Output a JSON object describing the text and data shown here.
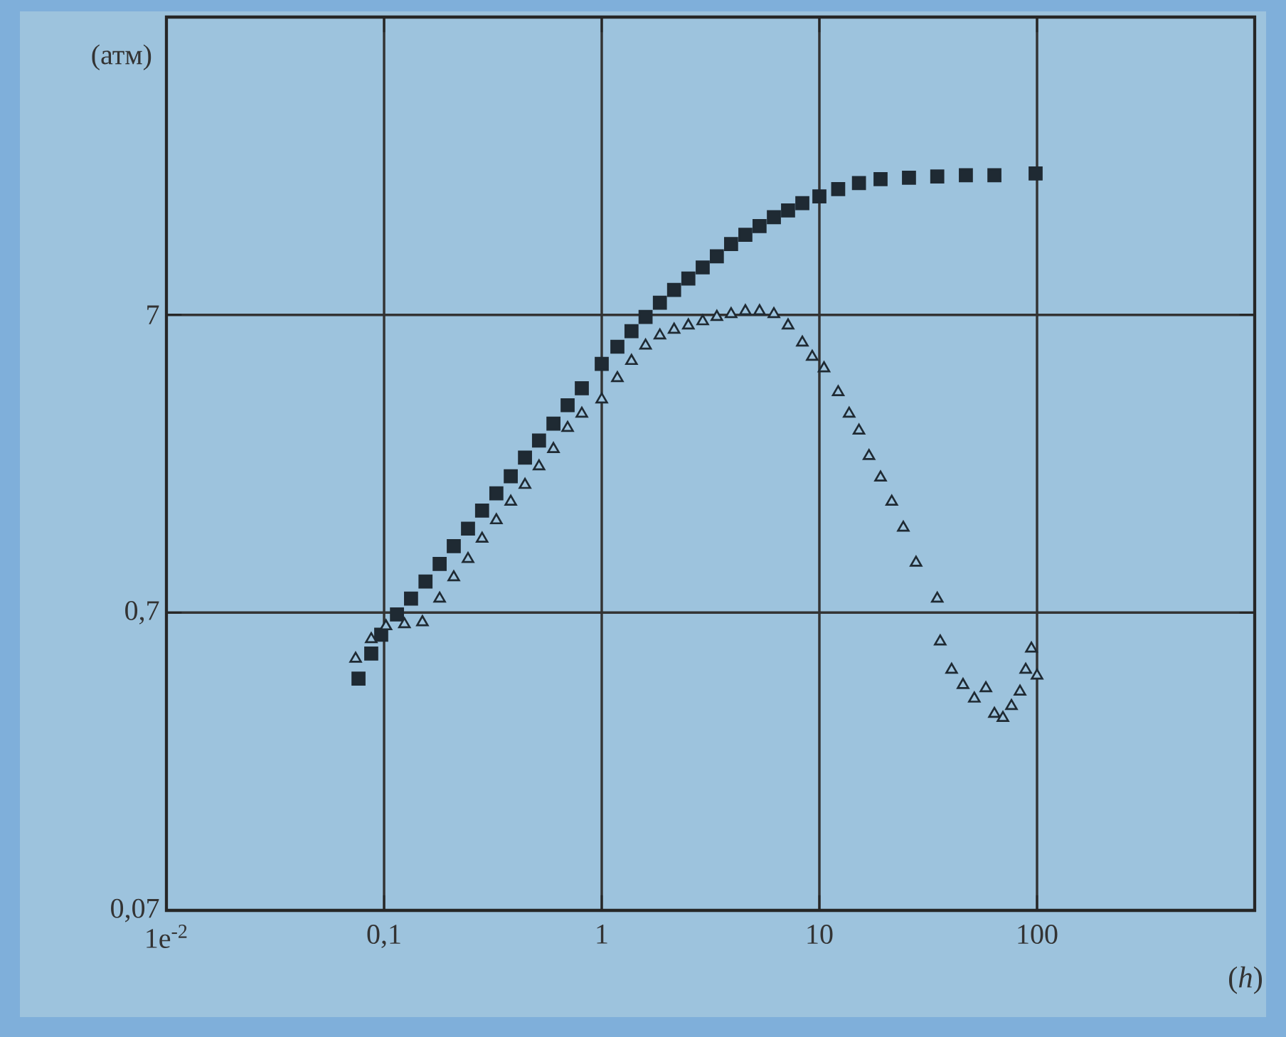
{
  "chart_data": {
    "type": "scatter",
    "xlabel": "(*h*)",
    "ylabel": "(атм)",
    "log": "xy",
    "grid": true,
    "xlim": [
      0.01,
      1000
    ],
    "ylim": [
      0.07,
      70
    ],
    "xticks": [
      {
        "value": 0.01,
        "label": "1e$^{-2}$"
      },
      {
        "value": 0.1,
        "label": "0,1"
      },
      1,
      10,
      100
    ],
    "yticks": [
      {
        "value": 0.07,
        "label": "0,07"
      },
      {
        "value": 0.7,
        "label": "0,7"
      },
      7
    ],
    "series": [
      {
        "color": "#1f2a33",
        "marker": "square",
        "x": [
          0.0763,
          0.0873,
          0.097,
          0.1146,
          0.133,
          0.155,
          0.18,
          0.209,
          0.243,
          0.282,
          0.328,
          0.382,
          0.444,
          0.515,
          0.6,
          0.697,
          0.81,
          1,
          1.18,
          1.37,
          1.59,
          1.85,
          2.15,
          2.5,
          2.91,
          3.38,
          3.93,
          4.57,
          5.31,
          6.18,
          7.18,
          8.35,
          10,
          12.2,
          15.2,
          19.1,
          25.8,
          34.8,
          47.1,
          63.7,
          98.5
        ],
        "values": [
          0.42,
          0.51,
          0.59,
          0.69,
          0.78,
          0.89,
          1.02,
          1.17,
          1.34,
          1.54,
          1.76,
          2.01,
          2.32,
          2.65,
          3.02,
          3.48,
          3.97,
          4.79,
          5.47,
          6.17,
          6.89,
          7.69,
          8.49,
          9.27,
          10.1,
          11.0,
          12.1,
          13.0,
          13.9,
          14.9,
          15.7,
          16.6,
          17.5,
          18.5,
          19.4,
          20.0,
          20.2,
          20.4,
          20.6,
          20.6,
          20.9
        ]
      },
      {
        "color": "#1f2a33",
        "marker": "triangle",
        "x": [
          0.074,
          0.0873,
          0.102,
          0.124,
          0.15,
          0.18,
          0.209,
          0.243,
          0.282,
          0.328,
          0.382,
          0.444,
          0.515,
          0.6,
          0.697,
          0.81,
          1,
          1.18,
          1.37,
          1.59,
          1.85,
          2.15,
          2.5,
          2.91,
          3.38,
          3.93,
          4.57,
          5.31,
          6.18,
          7.18,
          8.35,
          9.27,
          10.5,
          12.2,
          13.7,
          15.2,
          16.9,
          19.1,
          21.5,
          24.3,
          27.8,
          34.8,
          35.9,
          40.5,
          45.7,
          51.5,
          58.2,
          63.7,
          69.7,
          76.3,
          83.5,
          88.7,
          94.2,
          100
        ],
        "values": [
          0.49,
          0.57,
          0.63,
          0.64,
          0.65,
          0.78,
          0.92,
          1.06,
          1.24,
          1.43,
          1.65,
          1.88,
          2.17,
          2.48,
          2.92,
          3.26,
          3.64,
          4.29,
          4.9,
          5.52,
          5.97,
          6.24,
          6.45,
          6.66,
          6.89,
          7.04,
          7.2,
          7.2,
          7.04,
          6.45,
          5.65,
          5.06,
          4.63,
          3.85,
          3.26,
          2.86,
          2.35,
          1.99,
          1.65,
          1.35,
          1.03,
          0.78,
          0.56,
          0.45,
          0.4,
          0.36,
          0.39,
          0.32,
          0.31,
          0.34,
          0.38,
          0.45,
          0.53,
          0.43
        ]
      }
    ]
  }
}
